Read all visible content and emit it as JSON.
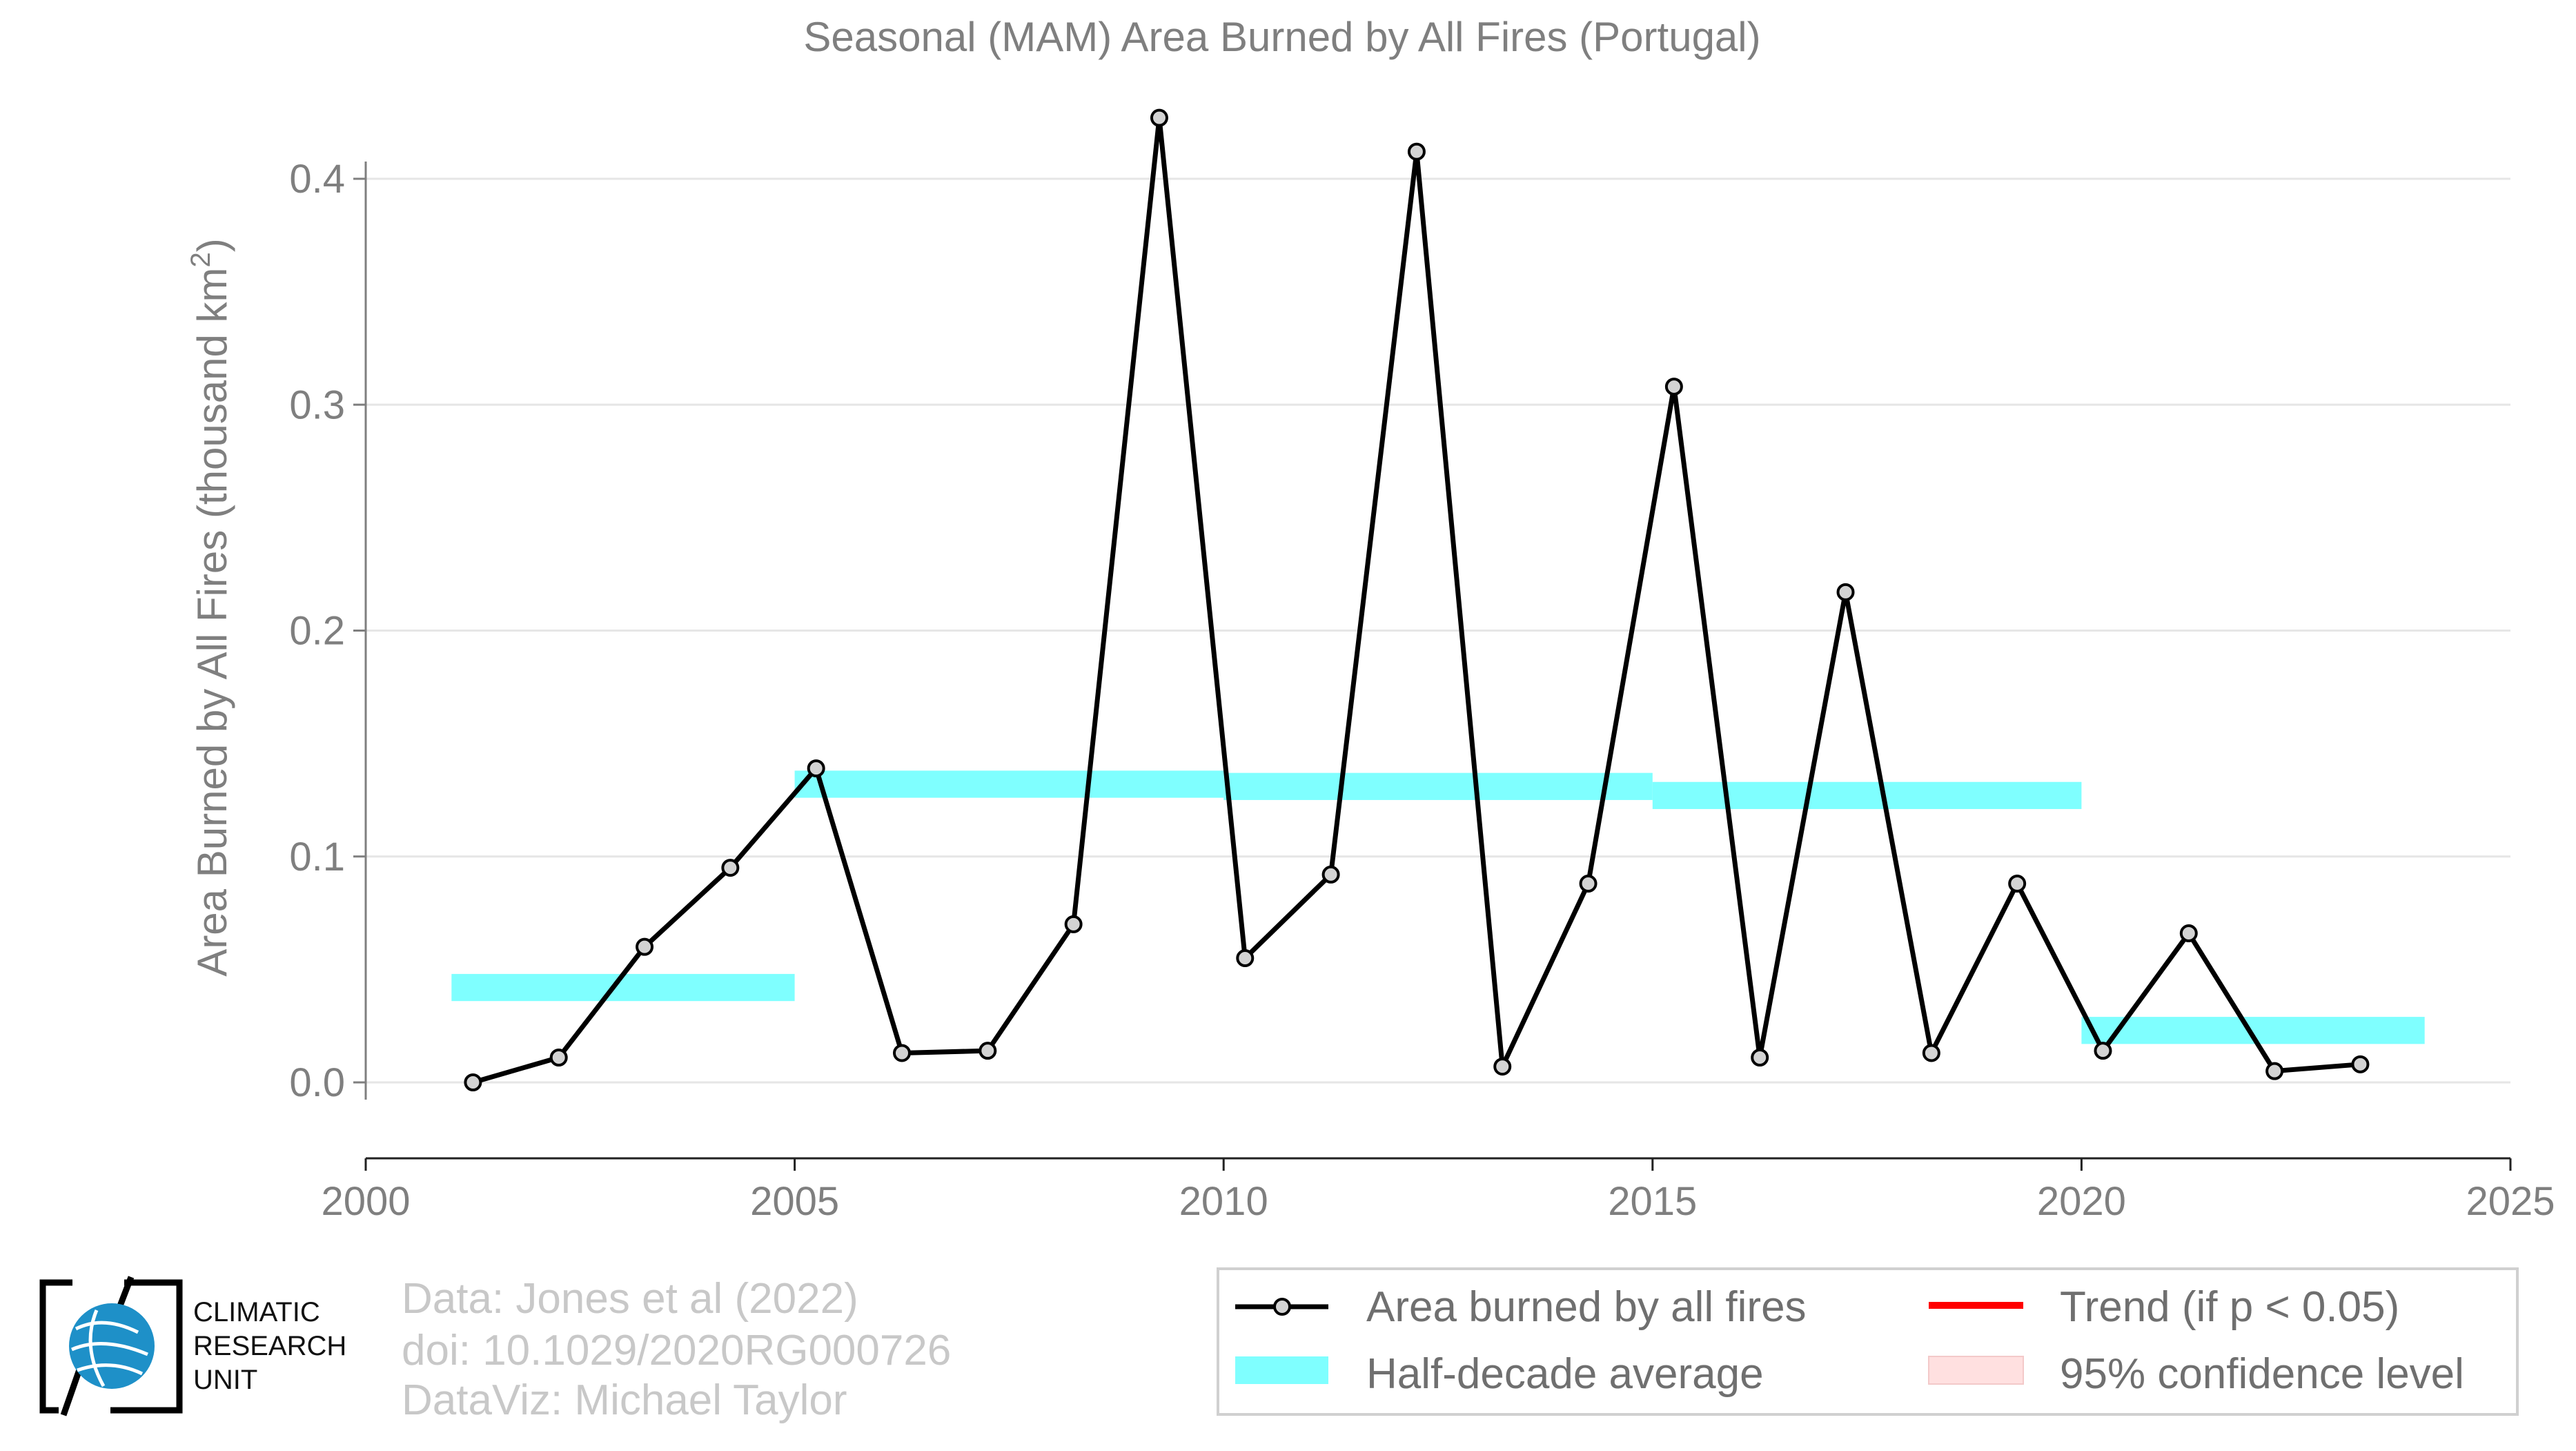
{
  "chart_data": {
    "type": "line",
    "title": "Seasonal (MAM) Area Burned by All Fires (Portugal)",
    "ylabel": "Area Burned by All Fires (thousand km",
    "ylabel_sup": "2",
    "ylabel_end": ")",
    "xlabel": "",
    "xlim": [
      2000,
      2025
    ],
    "ylim": [
      -0.035,
      0.44
    ],
    "x_ticks": [
      2000,
      2005,
      2010,
      2015,
      2020,
      2025
    ],
    "x_tick_labels": [
      "2000",
      "2005",
      "2010",
      "2015",
      "2020",
      "2025"
    ],
    "y_ticks": [
      0.0,
      0.1,
      0.2,
      0.3,
      0.4
    ],
    "y_tick_labels": [
      "0.0",
      "0.1",
      "0.2",
      "0.3",
      "0.4"
    ],
    "grid": "horizontal",
    "series": [
      {
        "name": "Area burned by all fires",
        "color": "#000000",
        "marker_fill": "#d3d3d3",
        "x": [
          2001.25,
          2002.25,
          2003.25,
          2004.25,
          2005.25,
          2006.25,
          2007.25,
          2008.25,
          2009.25,
          2010.25,
          2011.25,
          2012.25,
          2013.25,
          2014.25,
          2015.25,
          2016.25,
          2017.25,
          2018.25,
          2019.25,
          2020.25,
          2021.25,
          2022.25,
          2023.25
        ],
        "y": [
          0.0,
          0.011,
          0.06,
          0.095,
          0.139,
          0.013,
          0.014,
          0.07,
          0.427,
          0.055,
          0.092,
          0.412,
          0.007,
          0.088,
          0.308,
          0.011,
          0.217,
          0.013,
          0.088,
          0.014,
          0.066,
          0.005,
          0.008
        ]
      }
    ],
    "half_decade_averages": {
      "name": "Half-decade average",
      "color": "#7fffff",
      "segments": [
        {
          "start": 2001,
          "end": 2005,
          "value": 0.042
        },
        {
          "start": 2005,
          "end": 2010,
          "value": 0.132
        },
        {
          "start": 2010,
          "end": 2015,
          "value": 0.131
        },
        {
          "start": 2015,
          "end": 2020,
          "value": 0.127
        },
        {
          "start": 2020,
          "end": 2024,
          "value": 0.023
        }
      ],
      "band_half_height": 0.006
    },
    "legend": {
      "placement": "bottom-right",
      "entries": [
        {
          "label": "Area burned by all fires",
          "kind": "line-marker",
          "color": "#000000"
        },
        {
          "label": "Trend (if p < 0.05)",
          "kind": "line",
          "color": "#ff0000"
        },
        {
          "label": "Half-decade average",
          "kind": "band",
          "color": "#7fffff"
        },
        {
          "label": "95% confidence level",
          "kind": "patch",
          "color": "#ffe0e0"
        }
      ]
    }
  },
  "credits": {
    "line1": "Data: Jones et al (2022)",
    "line2": "doi: 10.1029/2020RG000726",
    "line3": "DataViz: Michael Taylor"
  },
  "logo": {
    "line1": "CLIMATIC",
    "line2": "RESEARCH",
    "line3": "UNIT",
    "globe_color": "#1e90c8"
  }
}
